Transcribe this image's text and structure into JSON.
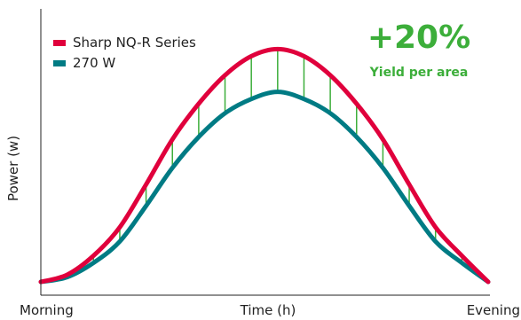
{
  "chart_data": {
    "type": "line",
    "title": "",
    "xlabel": "Time (h)",
    "ylabel": "Power (w)",
    "x_start_label": "Morning",
    "x_end_label": "Evening",
    "highlight": {
      "value": "+20%",
      "caption": "Yield per area"
    },
    "x": [
      0,
      1,
      2,
      3,
      4,
      5,
      6,
      7,
      8,
      9,
      10,
      11,
      12,
      13,
      14,
      15,
      16,
      17
    ],
    "series": [
      {
        "name": "Sharp NQ-R Series",
        "color": "#e0003c",
        "values": [
          0,
          3,
          11,
          23,
          41,
          60,
          75,
          87,
          95,
          98,
          95,
          87,
          75,
          60,
          41,
          23,
          11,
          0
        ]
      },
      {
        "name": "270 W",
        "color": "#007b84",
        "values": [
          0,
          2,
          8,
          17,
          32,
          48,
          61,
          71,
          77,
          80,
          77,
          71,
          61,
          48,
          32,
          17,
          8,
          0
        ]
      }
    ],
    "difference_markers_color": "#3cae3a",
    "ylim": [
      0,
      100
    ],
    "grid": false,
    "legend": "top-left"
  }
}
